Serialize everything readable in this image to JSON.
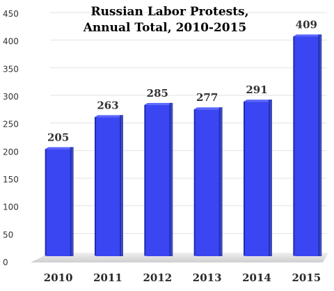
{
  "chart_data": {
    "type": "bar",
    "title": [
      "Russian Labor Protests,",
      "Annual Total, 2010-2015"
    ],
    "categories": [
      "2010",
      "2011",
      "2012",
      "2013",
      "2014",
      "2015"
    ],
    "values": [
      205,
      263,
      285,
      277,
      291,
      409
    ],
    "data_labels": [
      "205",
      "263",
      "285",
      "277",
      "291",
      "409"
    ],
    "ylim": [
      0,
      450
    ],
    "yticks": [
      "0",
      "50",
      "100",
      "150",
      "200",
      "250",
      "300",
      "350",
      "400",
      "450"
    ],
    "xlabel": "",
    "ylabel": "",
    "grid": true,
    "legend": "none",
    "colors": {
      "bar_front": "#3a46f2",
      "bar_side": "#1f2cb0",
      "bar_top": "#5a66ff",
      "grid": "#e2e2e2",
      "floor": "#d0d0d0"
    }
  }
}
